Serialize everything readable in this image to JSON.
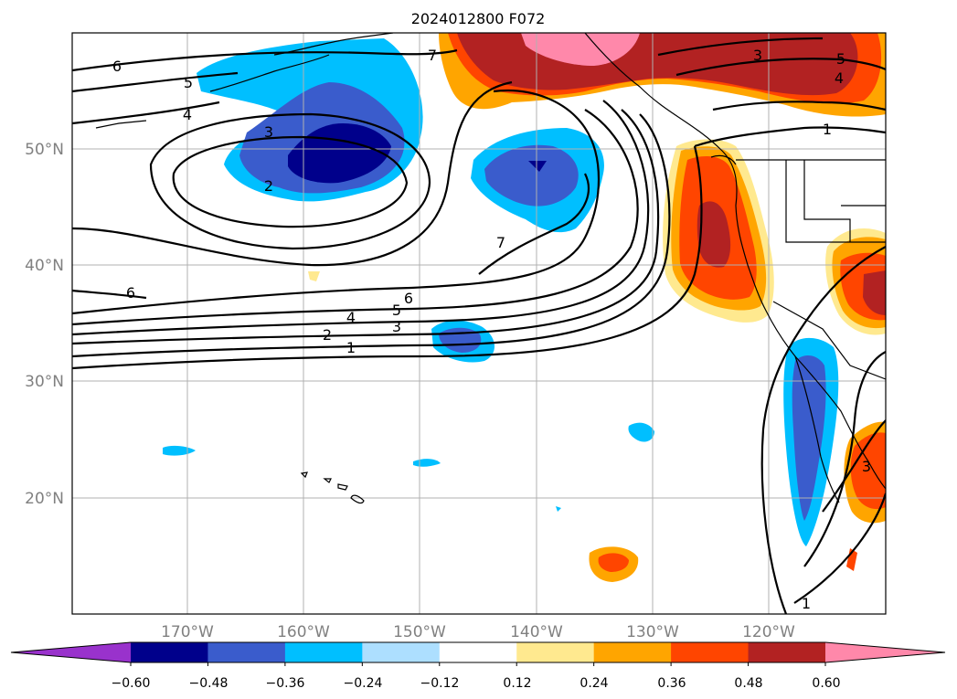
{
  "chart_data": {
    "type": "map-contour",
    "title": "2024012800 F072",
    "lat_labels": [
      "50°N",
      "40°N",
      "30°N",
      "20°N"
    ],
    "lon_labels": [
      "170°W",
      "160°W",
      "150°W",
      "140°W",
      "130°W",
      "120°W"
    ],
    "colorbar": {
      "ticks": [
        "−0.60",
        "−0.48",
        "−0.36",
        "−0.24",
        "−0.12",
        "0.12",
        "0.24",
        "0.36",
        "0.48",
        "0.60"
      ],
      "colors": [
        "#9932cc",
        "#00008b",
        "#3a5ccc",
        "#00bfff",
        "#addfff",
        "#ffffff",
        "#ffe98f",
        "#ffa500",
        "#ff4500",
        "#b22222",
        "#ff88aa"
      ],
      "extend": "both"
    },
    "contour_labels": [
      {
        "text": "6"
      },
      {
        "text": "5"
      },
      {
        "text": "4"
      },
      {
        "text": "3"
      },
      {
        "text": "2"
      },
      {
        "text": "7"
      },
      {
        "text": "3"
      },
      {
        "text": "5"
      },
      {
        "text": "4"
      },
      {
        "text": "1"
      },
      {
        "text": "7"
      },
      {
        "text": "6"
      },
      {
        "text": "5"
      },
      {
        "text": "4"
      },
      {
        "text": "3"
      },
      {
        "text": "2"
      },
      {
        "text": "1"
      },
      {
        "text": "6"
      },
      {
        "text": "3"
      },
      {
        "text": "1"
      }
    ]
  }
}
